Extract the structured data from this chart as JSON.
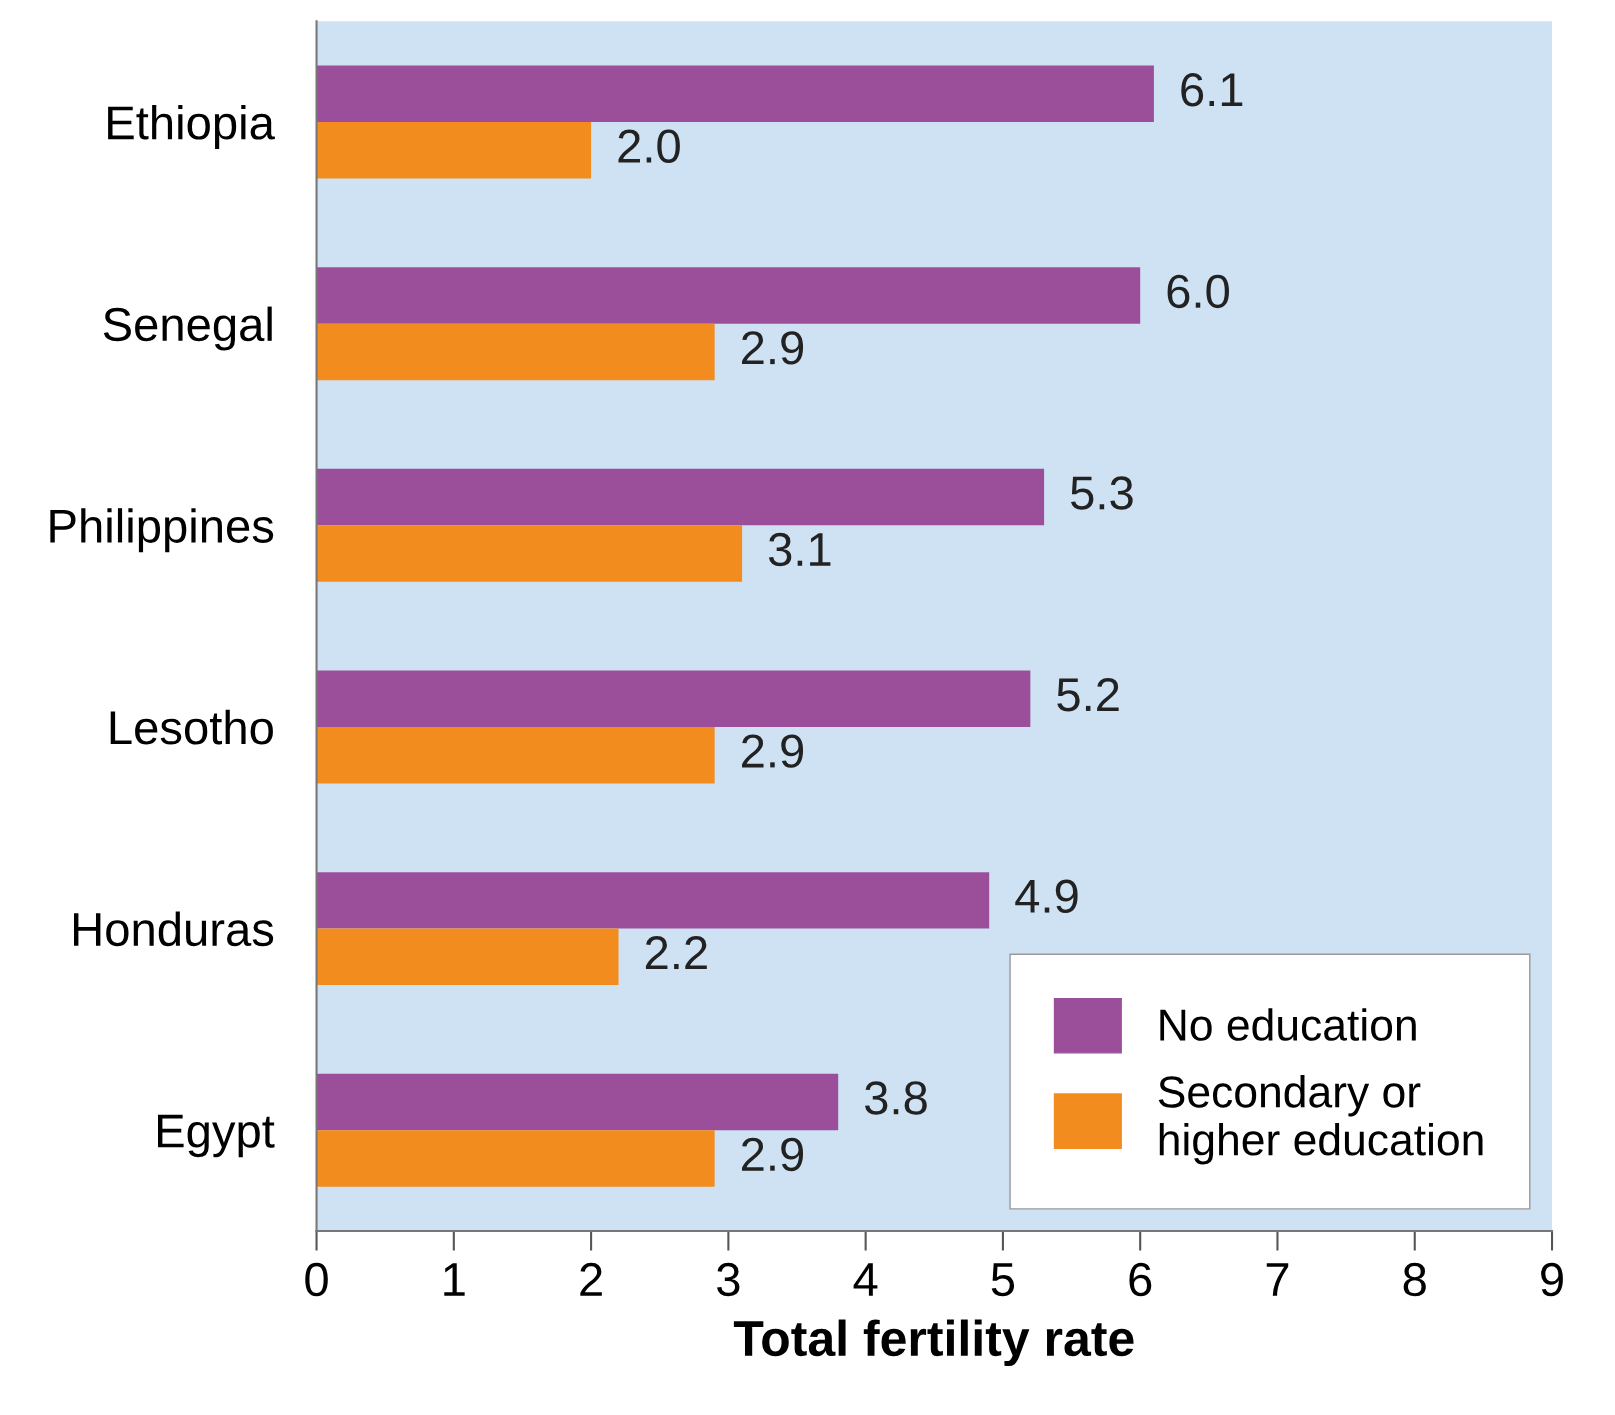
{
  "chart_data": {
    "type": "bar",
    "orientation": "horizontal",
    "xlabel": "Total fertility rate",
    "categories": [
      "Ethiopia",
      "Senegal",
      "Philippines",
      "Lesotho",
      "Honduras",
      "Egypt"
    ],
    "series": [
      {
        "name": "No education",
        "color": "#9b4f9b",
        "values": [
          6.1,
          6.0,
          5.3,
          5.2,
          4.9,
          3.8
        ],
        "value_labels": [
          "6.1",
          "6.0",
          "5.3",
          "5.2",
          "4.9",
          "3.8"
        ]
      },
      {
        "name": "Secondary or higher education",
        "color": "#f28c1f",
        "values": [
          2.0,
          2.9,
          3.1,
          2.9,
          2.2,
          2.9
        ],
        "value_labels": [
          "2.0",
          "2.9",
          "3.1",
          "2.9",
          "2.2",
          "2.9"
        ]
      }
    ],
    "xlim": [
      0,
      9
    ],
    "xticks": [
      0,
      1,
      2,
      3,
      4,
      5,
      6,
      7,
      8,
      9
    ],
    "grid": false,
    "legend": "bottom right"
  }
}
